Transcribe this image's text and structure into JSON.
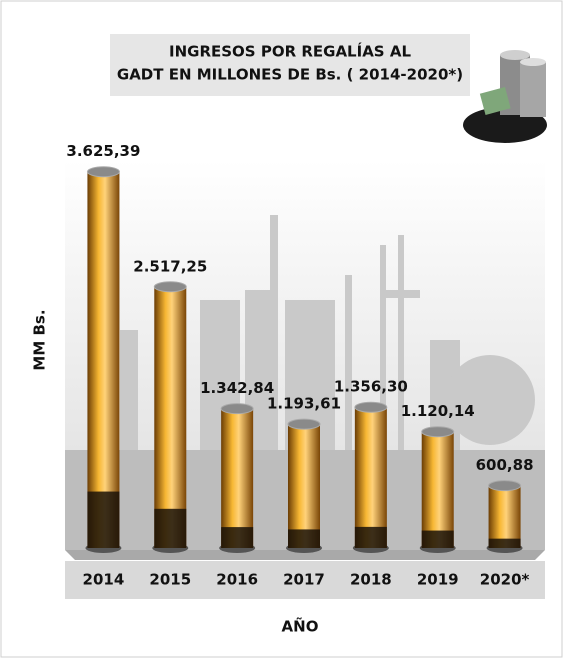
{
  "chart_data": {
    "type": "bar",
    "title": "INGRESOS POR REGALÍAS AL",
    "subtitle": "GADT EN MILLONES DE Bs. ( 2014-2020*)",
    "x_label": "AÑO",
    "y_label": "MM Bs.",
    "categories": [
      "2014",
      "2015",
      "2016",
      "2017",
      "2018",
      "2019",
      "2020*"
    ],
    "values": [
      3625.39,
      2517.25,
      1342.84,
      1193.61,
      1356.3,
      1120.14,
      600.88
    ],
    "value_labels": [
      "3.625,39",
      "2.517,25",
      "1.342,84",
      "1.193,61",
      "1.356,30",
      "1.120,14",
      "600,88"
    ],
    "color": "#e59a1c",
    "ylim": [
      0,
      3700
    ]
  }
}
